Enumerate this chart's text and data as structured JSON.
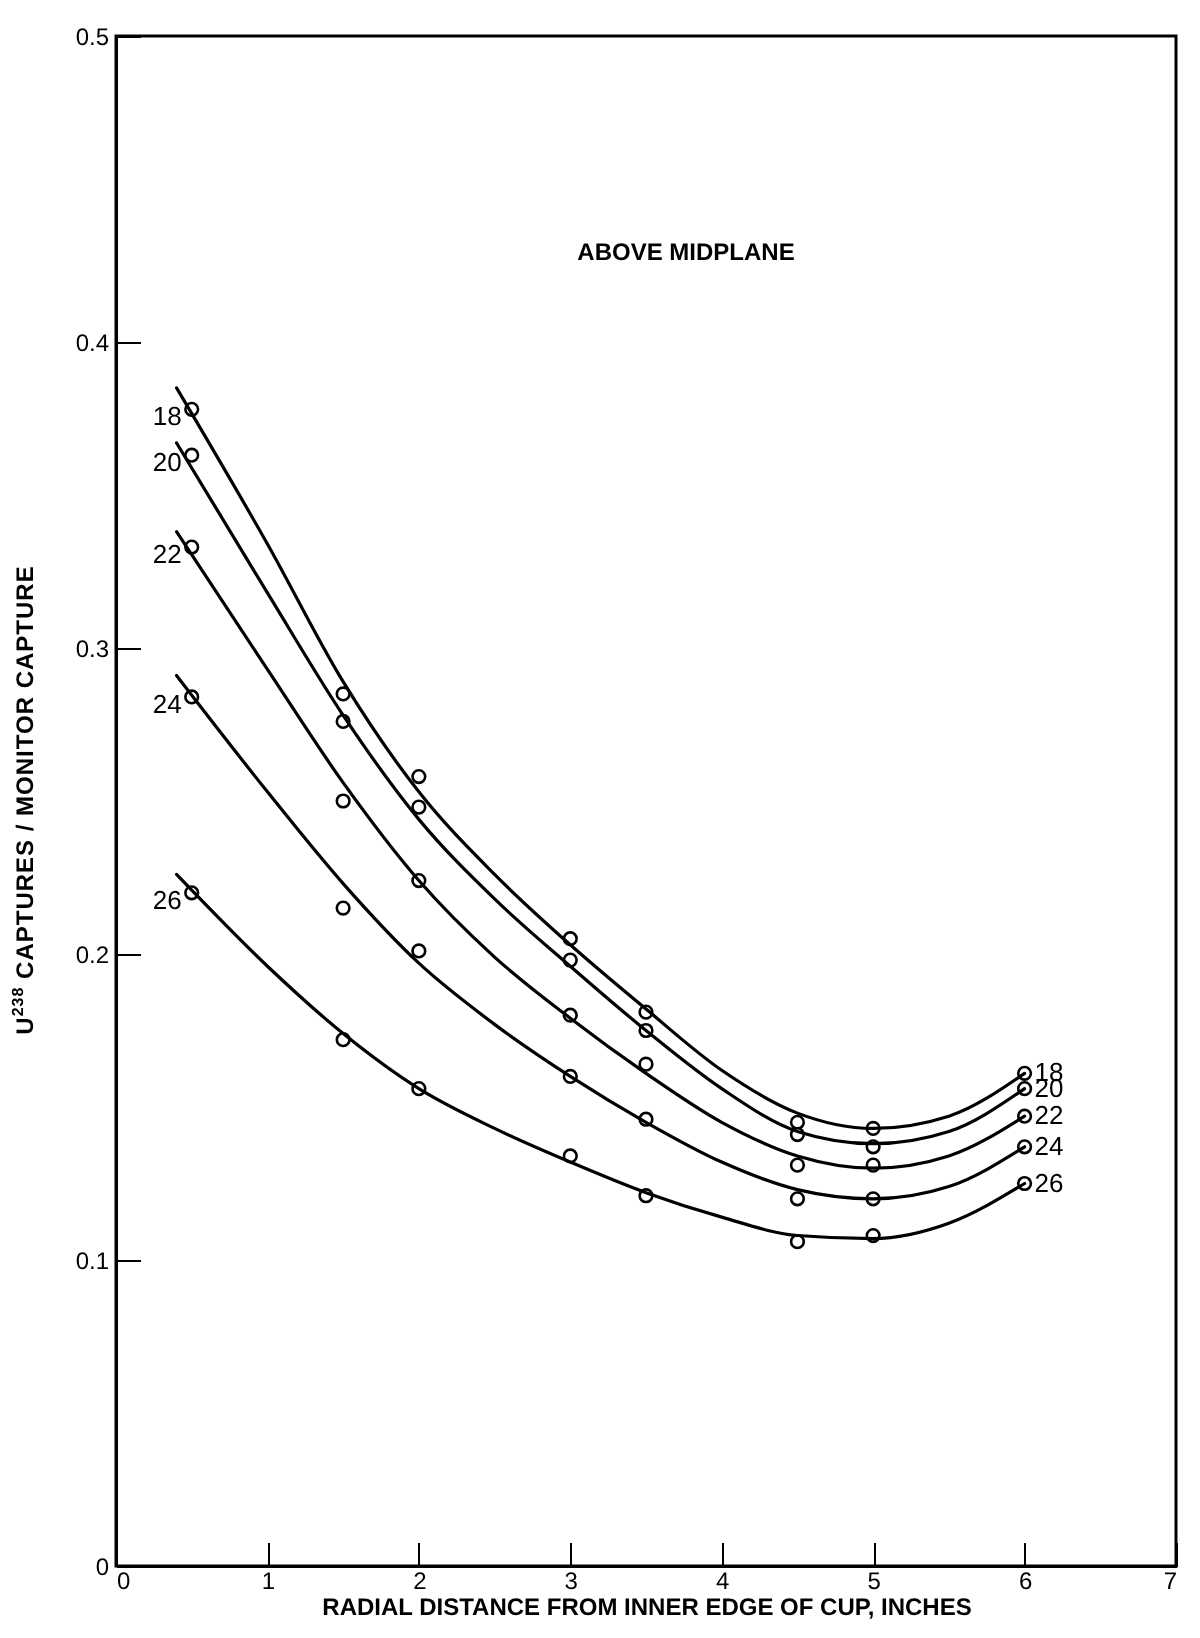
{
  "chart_data": {
    "type": "scatter",
    "xlabel": "RADIAL  DISTANCE  FROM  INNER  EDGE  OF  CUP, INCHES",
    "ylabel": "U$^{238}$ CAPTURES / MONITOR CAPTURE",
    "annotations": [
      "ABOVE  MIDPLANE"
    ],
    "x": [
      0.5,
      1.5,
      2,
      3,
      3.5,
      4.5,
      5,
      6
    ],
    "xlim": [
      0,
      7
    ],
    "xticks": [
      0,
      1,
      2,
      3,
      4,
      5,
      6,
      7
    ],
    "ylim": [
      0,
      0.5
    ],
    "yticks": [
      0,
      0.1,
      0.2,
      0.3,
      0.4,
      0.5
    ],
    "grid": false,
    "marker": "circle",
    "series": [
      {
        "name": "18",
        "color": "#000000",
        "values": [
          0.378,
          0.285,
          0.258,
          0.205,
          0.181,
          0.145,
          0.143,
          0.161
        ]
      },
      {
        "name": "20",
        "color": "#000000",
        "values": [
          0.363,
          0.276,
          0.248,
          0.198,
          0.175,
          0.141,
          0.137,
          0.156
        ]
      },
      {
        "name": "22",
        "color": "#000000",
        "values": [
          0.333,
          0.25,
          0.224,
          0.18,
          0.164,
          0.131,
          0.131,
          0.147
        ]
      },
      {
        "name": "24",
        "color": "#000000",
        "values": [
          0.284,
          0.215,
          0.201,
          0.16,
          0.146,
          0.12,
          0.12,
          0.137
        ]
      },
      {
        "name": "26",
        "color": "#000000",
        "values": [
          0.22,
          0.172,
          0.156,
          0.134,
          0.121,
          0.106,
          0.108,
          0.125
        ]
      },
      {
        "type": "line",
        "marker": "none",
        "color": "#000000",
        "x": [
          0.4,
          1,
          1.5,
          2,
          2.5,
          3,
          3.5,
          4,
          4.5,
          5,
          5.5,
          6
        ],
        "values": [
          0.385,
          0.334,
          0.289,
          0.253,
          0.226,
          0.203,
          0.182,
          0.162,
          0.148,
          0.143,
          0.147,
          0.161
        ]
      },
      {
        "type": "line",
        "marker": "none",
        "color": "#000000",
        "x": [
          0.4,
          1,
          1.5,
          2,
          2.5,
          3,
          3.5,
          4,
          4.5,
          5,
          5.5,
          6
        ],
        "values": [
          0.367,
          0.318,
          0.278,
          0.244,
          0.218,
          0.196,
          0.175,
          0.156,
          0.142,
          0.138,
          0.142,
          0.156
        ]
      },
      {
        "type": "line",
        "marker": "none",
        "color": "#000000",
        "x": [
          0.4,
          1,
          1.5,
          2,
          2.5,
          3,
          3.5,
          4,
          4.5,
          5,
          5.5,
          6
        ],
        "values": [
          0.338,
          0.293,
          0.256,
          0.224,
          0.199,
          0.179,
          0.161,
          0.145,
          0.134,
          0.13,
          0.134,
          0.147
        ]
      },
      {
        "type": "line",
        "marker": "none",
        "color": "#000000",
        "x": [
          0.4,
          1,
          1.5,
          2,
          2.5,
          3,
          3.5,
          4,
          4.5,
          5,
          5.5,
          6
        ],
        "values": [
          0.291,
          0.253,
          0.223,
          0.197,
          0.177,
          0.16,
          0.145,
          0.132,
          0.123,
          0.12,
          0.124,
          0.137
        ]
      },
      {
        "type": "line",
        "marker": "none",
        "color": "#000000",
        "x": [
          0.4,
          1,
          1.5,
          2,
          2.5,
          3,
          3.5,
          4,
          4.5,
          5,
          5.5,
          6
        ],
        "values": [
          0.226,
          0.196,
          0.174,
          0.156,
          0.143,
          0.132,
          0.122,
          0.114,
          0.108,
          0.107,
          0.112,
          0.125
        ]
      }
    ]
  }
}
